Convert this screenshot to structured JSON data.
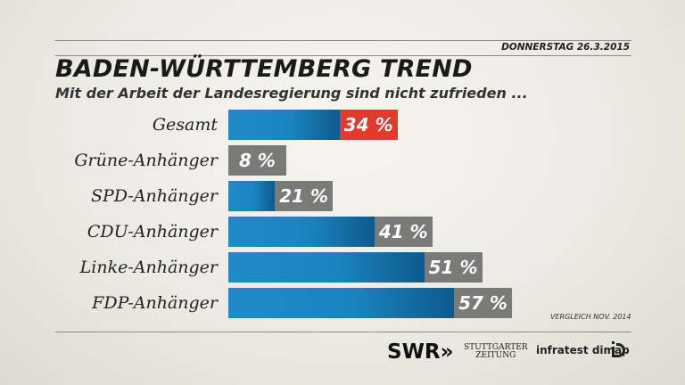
{
  "header": {
    "date": "DONNERSTAG 26.3.2015",
    "title": "BADEN-WÜRTTEMBERG TREND",
    "subtitle": "Mit der Arbeit der Landesregierung sind nicht zufrieden ..."
  },
  "colors": {
    "bar": "#1a84c0",
    "value_box": "#7a7a78",
    "highlight": "#e23a2c"
  },
  "footnote": "VERGLEICH NOV. 2014",
  "logos": {
    "swr": "SWR",
    "stuttgarter_line1": "STUTTGARTER",
    "stuttgarter_line2": "ZEITUNG",
    "infratest": "infratest dimap"
  },
  "chart_data": {
    "type": "bar",
    "orientation": "horizontal",
    "categories": [
      "Gesamt",
      "Grüne-Anhänger",
      "SPD-Anhänger",
      "CDU-Anhänger",
      "Linke-Anhänger",
      "FDP-Anhänger"
    ],
    "values": [
      34,
      8,
      21,
      41,
      51,
      57
    ],
    "value_labels": [
      "34 %",
      "8 %",
      "21 %",
      "41 %",
      "51 %",
      "57 %"
    ],
    "highlighted": "Gesamt",
    "unit": "%"
  }
}
